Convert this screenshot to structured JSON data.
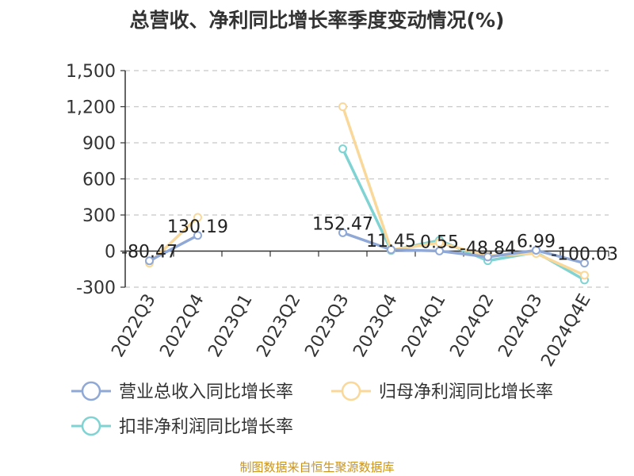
{
  "chart_data": {
    "type": "line",
    "title": "总营收、净利同比增长率季度变动情况(%)",
    "categories": [
      "2022Q3",
      "2022Q4",
      "2023Q1",
      "2023Q2",
      "2023Q3",
      "2023Q4",
      "2024Q1",
      "2024Q2",
      "2024Q3",
      "2024Q4E"
    ],
    "ylim": [
      -300,
      1500
    ],
    "yticks": [
      -300,
      0,
      300,
      600,
      900,
      1200,
      1500
    ],
    "ytick_labels": [
      "-300",
      "0",
      "300",
      "600",
      "900",
      "1,200",
      "1,500"
    ],
    "grid": "horizontal-dashed",
    "legend_position": "bottom",
    "series": [
      {
        "name": "营业总收入同比增长率",
        "color": "#8fa8d6",
        "values": [
          -80.47,
          130.19,
          null,
          null,
          152.47,
          11.45,
          0.55,
          -48.84,
          6.99,
          -100.03
        ],
        "labels": [
          "-80.47",
          "130.19",
          "",
          "",
          "152.47",
          "11.45",
          "0.55",
          "-48.84",
          "6.99",
          "-100.03"
        ]
      },
      {
        "name": "归母净利润同比增长率",
        "color": "#f9d89a",
        "values": [
          -100,
          280,
          null,
          null,
          1200,
          10,
          70,
          -40,
          -20,
          -200
        ],
        "labels": []
      },
      {
        "name": "扣非净利润同比增长率",
        "color": "#7fd3d2",
        "values": [
          null,
          null,
          null,
          null,
          850,
          5,
          90,
          -80,
          -10,
          -240
        ],
        "labels": []
      }
    ]
  },
  "source": "制图数据来自恒生聚源数据库"
}
